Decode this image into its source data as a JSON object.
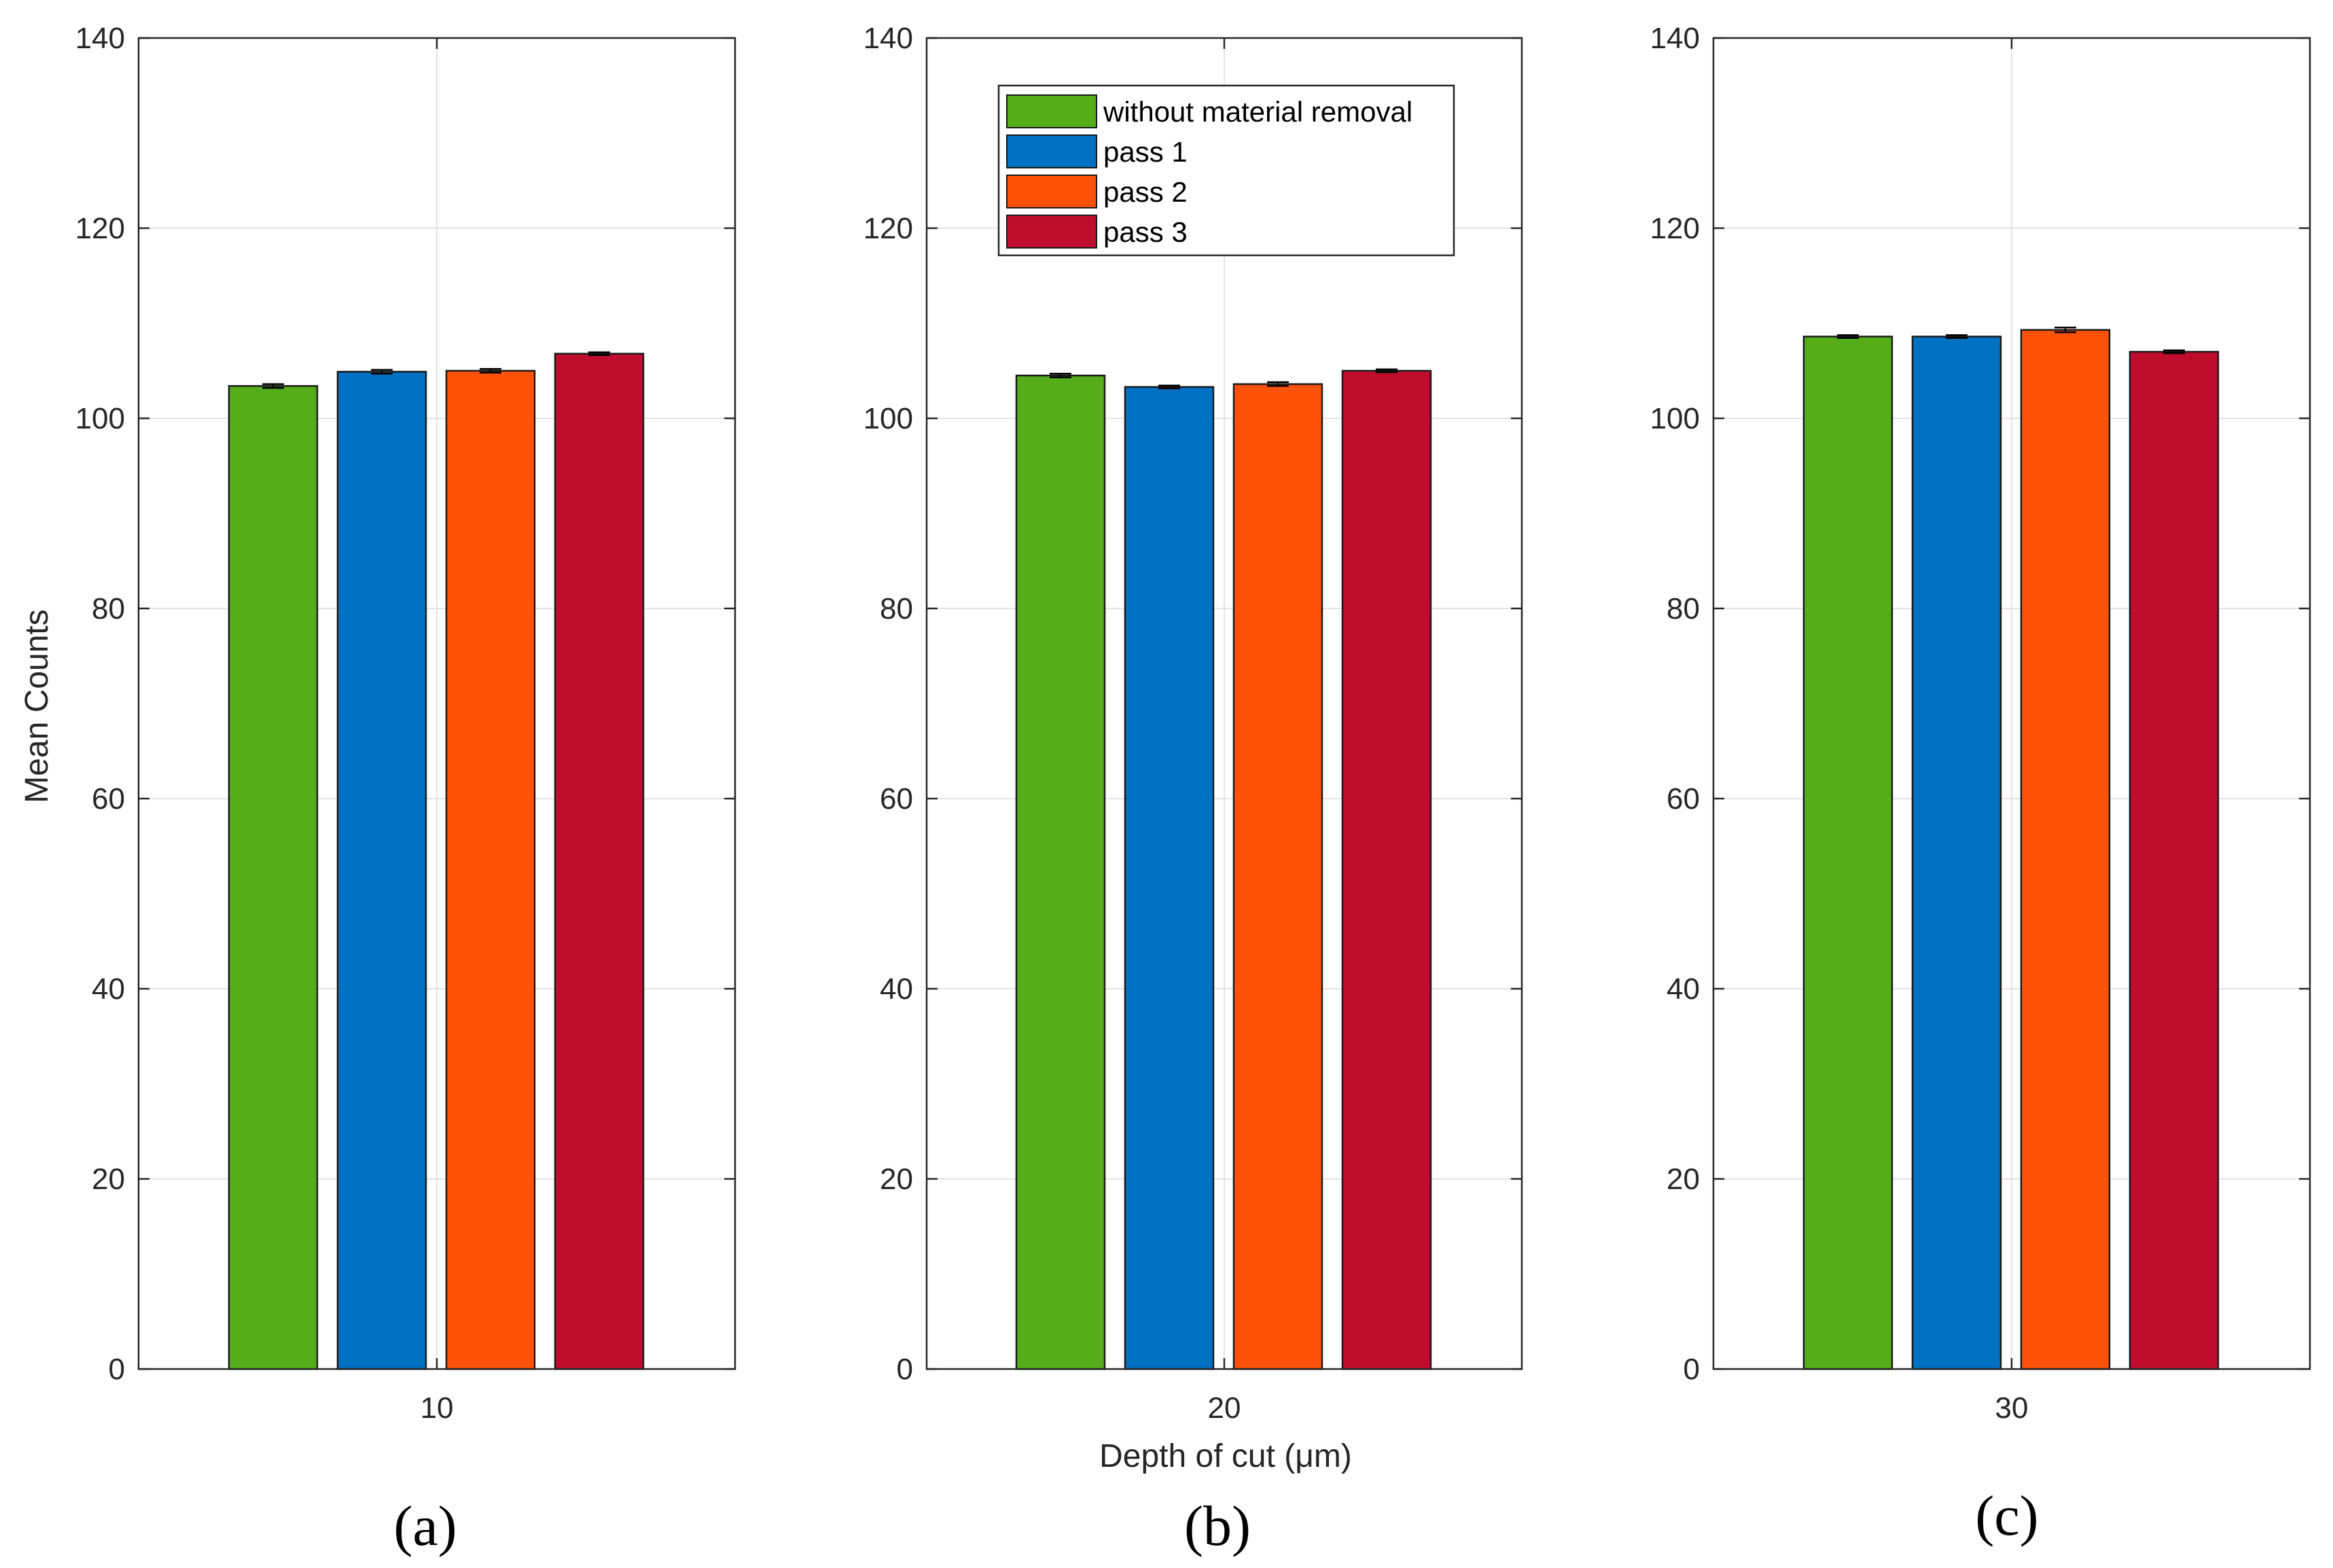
{
  "chart_data": [
    {
      "type": "bar",
      "panel_label": "(a)",
      "categories": [
        "10"
      ],
      "series": [
        {
          "name": "without material removal",
          "values": [
            103.4
          ],
          "error": [
            0.2
          ]
        },
        {
          "name": "pass 1",
          "values": [
            104.9
          ],
          "error": [
            0.2
          ]
        },
        {
          "name": "pass 2",
          "values": [
            105.0
          ],
          "error": [
            0.2
          ]
        },
        {
          "name": "pass 3",
          "values": [
            106.8
          ],
          "error": [
            0.15
          ]
        }
      ],
      "ylabel": "Mean Counts",
      "xlabel": "",
      "ylim": [
        0,
        140
      ],
      "yticks": [
        "0",
        "20",
        "40",
        "60",
        "80",
        "100",
        "120",
        "140"
      ],
      "grid": true,
      "legend": false
    },
    {
      "type": "bar",
      "panel_label": "(b)",
      "categories": [
        "20"
      ],
      "series": [
        {
          "name": "without material removal",
          "values": [
            104.5
          ],
          "error": [
            0.2
          ]
        },
        {
          "name": "pass 1",
          "values": [
            103.3
          ],
          "error": [
            0.15
          ]
        },
        {
          "name": "pass 2",
          "values": [
            103.6
          ],
          "error": [
            0.2
          ]
        },
        {
          "name": "pass 3",
          "values": [
            105.0
          ],
          "error": [
            0.15
          ]
        }
      ],
      "ylabel": "",
      "xlabel": "Depth of cut (μm)",
      "ylim": [
        0,
        140
      ],
      "yticks": [
        "0",
        "20",
        "40",
        "60",
        "80",
        "100",
        "120",
        "140"
      ],
      "grid": true,
      "legend": true,
      "legend_position": "top-right"
    },
    {
      "type": "bar",
      "panel_label": "(c)",
      "categories": [
        "30"
      ],
      "series": [
        {
          "name": "without material removal",
          "values": [
            108.6
          ],
          "error": [
            0.15
          ]
        },
        {
          "name": "pass 1",
          "values": [
            108.6
          ],
          "error": [
            0.15
          ]
        },
        {
          "name": "pass 2",
          "values": [
            109.3
          ],
          "error": [
            0.25
          ]
        },
        {
          "name": "pass 3",
          "values": [
            107.0
          ],
          "error": [
            0.15
          ]
        }
      ],
      "ylabel": "",
      "xlabel": "",
      "ylim": [
        0,
        140
      ],
      "yticks": [
        "0",
        "20",
        "40",
        "60",
        "80",
        "100",
        "120",
        "140"
      ],
      "grid": true,
      "legend": false
    }
  ],
  "colors": {
    "without material removal": "#56ad1a",
    "pass 1": "#0071c2",
    "pass 2": "#fd520a",
    "pass 3": "#bf0d2e",
    "grid": "#e3e3e3",
    "axis": "#262626",
    "bar_edge": "#1a1a1a"
  }
}
